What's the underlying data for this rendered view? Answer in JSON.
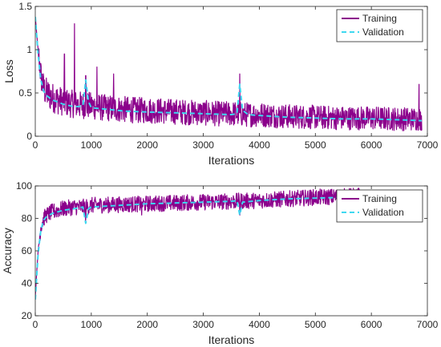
{
  "chart_data": [
    {
      "type": "line",
      "xlabel": "Iterations",
      "ylabel": "Loss",
      "xlim": [
        0,
        7000
      ],
      "ylim": [
        0,
        1.5
      ],
      "xticks": [
        0,
        1000,
        2000,
        3000,
        4000,
        5000,
        6000,
        7000
      ],
      "yticks": [
        0,
        0.5,
        1,
        1.5
      ],
      "xtick_labels": [
        "0",
        "1000",
        "2000",
        "3000",
        "4000",
        "5000",
        "6000",
        "7000"
      ],
      "ytick_labels": [
        "0",
        "0.5",
        "1",
        "1.5"
      ],
      "grid": false,
      "legend_position": "top-right",
      "series": [
        {
          "name": "Training",
          "color": "#8B008B",
          "style": "solid",
          "x": [
            0,
            50,
            100,
            150,
            200,
            300,
            400,
            500,
            600,
            700,
            800,
            900,
            1000,
            1200,
            1400,
            1600,
            1800,
            2000,
            2300,
            2600,
            3000,
            3300,
            3600,
            3650,
            3700,
            4000,
            4500,
            5000,
            5500,
            6000,
            6500,
            6900
          ],
          "y": [
            1.38,
            1.0,
            0.7,
            0.55,
            0.5,
            0.45,
            0.42,
            0.4,
            0.38,
            0.37,
            0.36,
            0.36,
            0.35,
            0.33,
            0.32,
            0.31,
            0.3,
            0.3,
            0.29,
            0.28,
            0.27,
            0.26,
            0.26,
            0.26,
            0.25,
            0.25,
            0.23,
            0.22,
            0.21,
            0.21,
            0.2,
            0.2
          ],
          "noise_band": 0.18,
          "spikes": [
            {
              "x": 700,
              "y": 1.3
            },
            {
              "x": 520,
              "y": 0.95
            },
            {
              "x": 1100,
              "y": 0.8
            },
            {
              "x": 900,
              "y": 0.7
            },
            {
              "x": 3650,
              "y": 0.72
            },
            {
              "x": 1400,
              "y": 0.72
            },
            {
              "x": 6850,
              "y": 0.6
            }
          ]
        },
        {
          "name": "Validation",
          "color": "#3ED8F0",
          "style": "dashed",
          "x": [
            0,
            50,
            100,
            150,
            200,
            300,
            500,
            700,
            850,
            900,
            950,
            1000,
            1300,
            1600,
            2000,
            2500,
            3000,
            3500,
            3600,
            3650,
            3700,
            3800,
            4000,
            4500,
            5000,
            5500,
            6000,
            6500,
            6900
          ],
          "y": [
            1.38,
            0.95,
            0.65,
            0.52,
            0.47,
            0.42,
            0.37,
            0.34,
            0.35,
            0.65,
            0.4,
            0.33,
            0.31,
            0.29,
            0.28,
            0.27,
            0.26,
            0.25,
            0.26,
            0.6,
            0.3,
            0.25,
            0.24,
            0.22,
            0.21,
            0.2,
            0.2,
            0.19,
            0.18
          ]
        }
      ]
    },
    {
      "type": "line",
      "xlabel": "Iterations",
      "ylabel": "Accuracy",
      "xlim": [
        0,
        7000
      ],
      "ylim": [
        20,
        100
      ],
      "xticks": [
        0,
        1000,
        2000,
        3000,
        4000,
        5000,
        6000,
        7000
      ],
      "yticks": [
        20,
        40,
        60,
        80,
        100
      ],
      "xtick_labels": [
        "0",
        "1000",
        "2000",
        "3000",
        "4000",
        "5000",
        "6000",
        "7000"
      ],
      "ytick_labels": [
        "20",
        "40",
        "60",
        "80",
        "100"
      ],
      "grid": false,
      "legend_position": "top-right",
      "series": [
        {
          "name": "Training",
          "color": "#8B008B",
          "style": "solid",
          "x": [
            0,
            50,
            100,
            150,
            200,
            300,
            500,
            700,
            900,
            1000,
            1500,
            2000,
            2500,
            3000,
            3500,
            4000,
            4500,
            5000,
            5500,
            5800
          ],
          "y": [
            32,
            60,
            75,
            80,
            82,
            84,
            86,
            87,
            87,
            88,
            88.5,
            89,
            89.5,
            90,
            90.5,
            91,
            92,
            93,
            93.5,
            94
          ],
          "noise_band": 5,
          "spikes": [
            {
              "x": 900,
              "y": 77
            },
            {
              "x": 3650,
              "y": 82
            },
            {
              "x": 1900,
              "y": 82
            }
          ]
        },
        {
          "name": "Validation",
          "color": "#3ED8F0",
          "style": "dashed",
          "x": [
            0,
            50,
            100,
            150,
            200,
            300,
            500,
            700,
            850,
            900,
            950,
            1000,
            1500,
            2000,
            2500,
            3000,
            3500,
            3600,
            3650,
            3700,
            4000,
            4500,
            5000,
            5500,
            5800
          ],
          "y": [
            30,
            58,
            73,
            79,
            81,
            83,
            85,
            86,
            87,
            77,
            86,
            87,
            88,
            89,
            89.5,
            90,
            90.5,
            91,
            82,
            90,
            91,
            92,
            92.5,
            93,
            93.5
          ]
        }
      ]
    }
  ]
}
